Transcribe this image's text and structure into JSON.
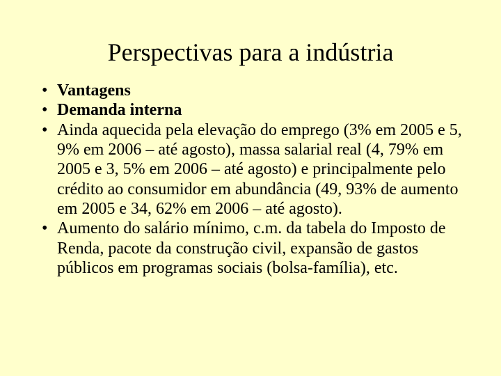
{
  "slide": {
    "background_color": "#ffffcc",
    "text_color": "#000000",
    "font_family": "Times New Roman",
    "title": {
      "text": "Perspectivas para a indústria",
      "fontsize": 36,
      "font_weight": "normal",
      "align": "center"
    },
    "bullets": {
      "fontsize": 24,
      "line_height": 1.18,
      "items": [
        {
          "text": "Vantagens",
          "bold": true
        },
        {
          "text": "Demanda interna",
          "bold": true
        },
        {
          "text": "Ainda aquecida pela elevação do emprego (3% em 2005 e 5, 9% em 2006 – até agosto), massa salarial real (4, 79% em 2005 e 3, 5% em 2006 – até agosto) e principalmente pelo crédito ao consumidor em abundância (49, 93% de aumento em 2005 e 34, 62% em 2006  – até agosto).",
          "bold": false
        },
        {
          "text": "Aumento do salário mínimo, c.m. da tabela do Imposto de Renda, pacote da construção civil, expansão de gastos públicos em programas sociais (bolsa-família), etc.",
          "bold": false
        }
      ]
    }
  }
}
